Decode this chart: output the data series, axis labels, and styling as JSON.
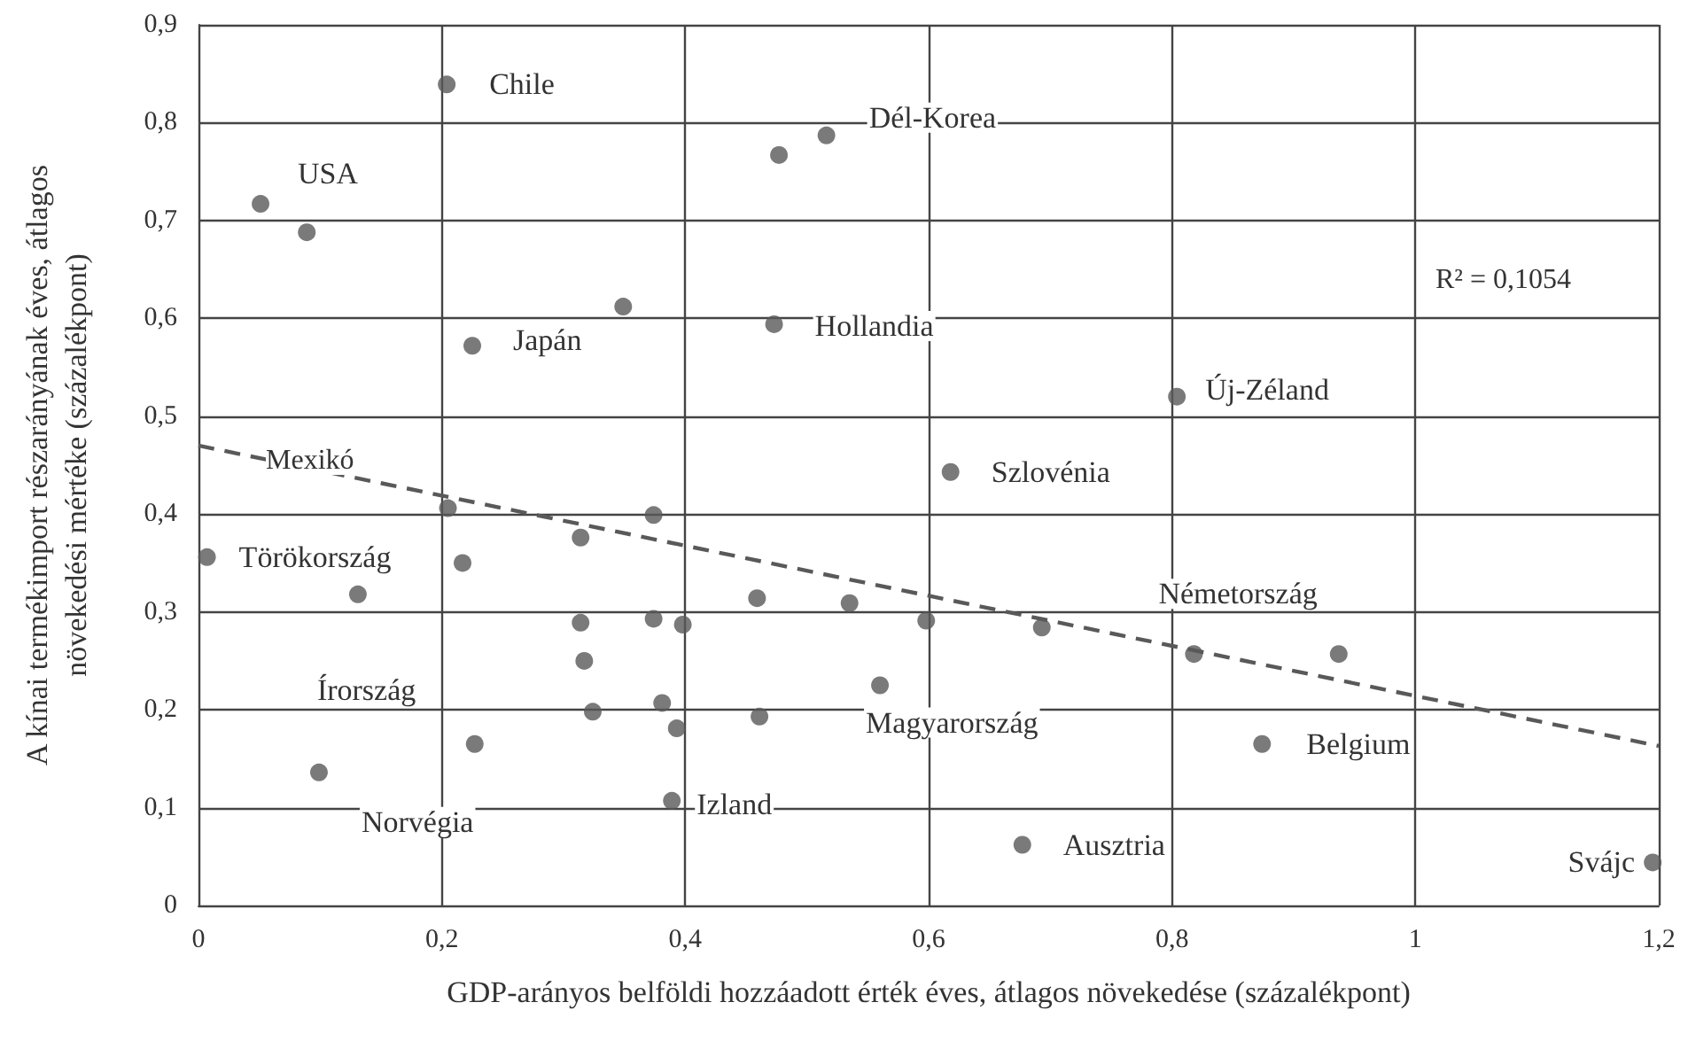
{
  "chart_data": {
    "type": "scatter",
    "xlabel": "GDP-arányos belföldi hozzáadott érték éves, átlagos növekedése (százalékpont)",
    "ylabel": "A kínai termékimport részarányának éves, átlagos\nnövekedési mértéke (százalékpont)",
    "xlim": [
      0,
      1.2
    ],
    "xticks": [
      {
        "value": 0,
        "label": "0"
      },
      {
        "value": 0.2,
        "label": "0,2"
      },
      {
        "value": 0.4,
        "label": "0,4"
      },
      {
        "value": 0.6,
        "label": "0,6"
      },
      {
        "value": 0.8,
        "label": "0,8"
      },
      {
        "value": 1,
        "label": "1"
      },
      {
        "value": 1.2,
        "label": "1,2"
      }
    ],
    "ylim": [
      0,
      0.9
    ],
    "yticks": [
      {
        "value": 0,
        "label": "0"
      },
      {
        "value": 0.1,
        "label": "0,1"
      },
      {
        "value": 0.2,
        "label": "0,2"
      },
      {
        "value": 0.3,
        "label": "0,3"
      },
      {
        "value": 0.4,
        "label": "0,4"
      },
      {
        "value": 0.5,
        "label": "0,5"
      },
      {
        "value": 0.6,
        "label": "0,6"
      },
      {
        "value": 0.7,
        "label": "0,7"
      },
      {
        "value": 0.8,
        "label": "0,8"
      },
      {
        "value": 0.9,
        "label": "0,9"
      }
    ],
    "grid": true,
    "marker": "circle",
    "series": [
      {
        "color": "#595959",
        "x": [
          0.051,
          0.089,
          0.204,
          0.349,
          0.225,
          0.477,
          0.516,
          0.473,
          0.804,
          0.618,
          0.205,
          0.374,
          0.007,
          0.314,
          0.217,
          0.131,
          0.314,
          0.374,
          0.398,
          0.459,
          0.535,
          0.317,
          0.56,
          0.324,
          0.381,
          0.393,
          0.461,
          0.227,
          0.099,
          0.389,
          0.598,
          0.693,
          0.818,
          0.937,
          0.874,
          0.677,
          1.195
        ],
        "values": [
          0.717,
          0.688,
          0.839,
          0.612,
          0.572,
          0.767,
          0.787,
          0.594,
          0.52,
          0.443,
          0.406,
          0.399,
          0.356,
          0.376,
          0.35,
          0.318,
          0.289,
          0.293,
          0.287,
          0.314,
          0.309,
          0.25,
          0.225,
          0.198,
          0.207,
          0.181,
          0.193,
          0.165,
          0.136,
          0.107,
          0.291,
          0.284,
          0.257,
          0.257,
          0.165,
          0.062,
          0.044
        ]
      },
      {
        "type": "line",
        "color": "#595959",
        "line_style": "dashed",
        "marker": "none",
        "x": [
          0,
          1.2
        ],
        "values": [
          0.47,
          0.163
        ]
      }
    ],
    "annotations": [
      {
        "text": "USA",
        "x": 0.051,
        "y": 0.717
      },
      {
        "text": "Chile",
        "x": 0.204,
        "y": 0.839
      },
      {
        "text": "Dél-Korea",
        "x": 0.516,
        "y": 0.787
      },
      {
        "text": "Japán",
        "x": 0.225,
        "y": 0.572
      },
      {
        "text": "Hollandia",
        "x": 0.473,
        "y": 0.594
      },
      {
        "text": "Új-Zéland",
        "x": 0.804,
        "y": 0.52
      },
      {
        "text": "Szlovénia",
        "x": 0.618,
        "y": 0.443
      },
      "Mexikó",
      {
        "text": "Törökország",
        "x": 0.007,
        "y": 0.356
      },
      {
        "text": "Németország",
        "x": 0.818,
        "y": 0.257
      },
      {
        "text": "Írország",
        "x": 0.131,
        "y": 0.318
      },
      {
        "text": "Norvégia",
        "x": 0.099,
        "y": 0.136
      },
      {
        "text": "Izland",
        "x": 0.389,
        "y": 0.107
      },
      {
        "text": "Magyarország",
        "x": 0.56,
        "y": 0.225
      },
      {
        "text": "Belgium",
        "x": 0.874,
        "y": 0.165
      },
      {
        "text": "Ausztria",
        "x": 0.677,
        "y": 0.062
      },
      {
        "text": "Svájc",
        "x": 1.195,
        "y": 0.044
      },
      "R² = 0,1054"
    ]
  }
}
